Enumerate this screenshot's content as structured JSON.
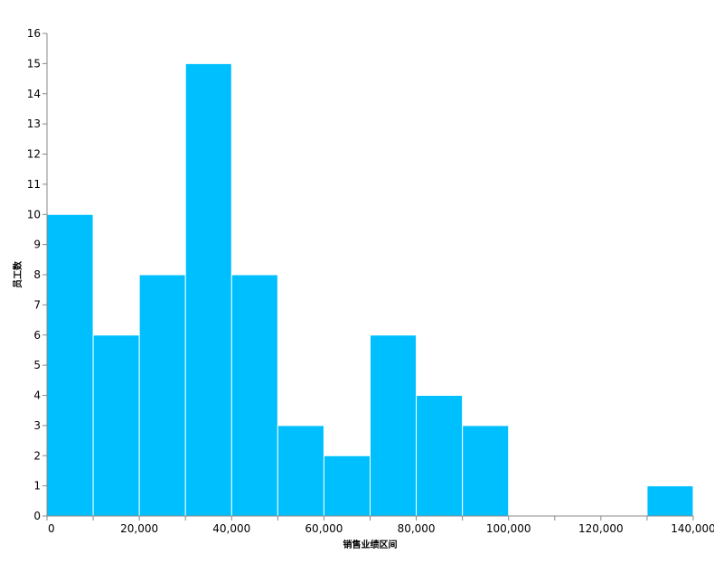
{
  "chart_data": {
    "type": "bar",
    "subtype": "histogram",
    "bins": [
      {
        "start": 0,
        "end": 10000,
        "count": 10
      },
      {
        "start": 10000,
        "end": 20000,
        "count": 6
      },
      {
        "start": 20000,
        "end": 30000,
        "count": 8
      },
      {
        "start": 30000,
        "end": 40000,
        "count": 15
      },
      {
        "start": 40000,
        "end": 50000,
        "count": 8
      },
      {
        "start": 50000,
        "end": 60000,
        "count": 3
      },
      {
        "start": 60000,
        "end": 70000,
        "count": 2
      },
      {
        "start": 70000,
        "end": 80000,
        "count": 6
      },
      {
        "start": 80000,
        "end": 90000,
        "count": 4
      },
      {
        "start": 90000,
        "end": 100000,
        "count": 3
      },
      {
        "start": 100000,
        "end": 110000,
        "count": 0
      },
      {
        "start": 110000,
        "end": 120000,
        "count": 0
      },
      {
        "start": 120000,
        "end": 130000,
        "count": 0
      },
      {
        "start": 130000,
        "end": 140000,
        "count": 1
      }
    ],
    "xlabel": "销售业绩区间",
    "ylabel": "员工数",
    "xlim": [
      0,
      140000
    ],
    "ylim": [
      0,
      16
    ],
    "x_ticks": [
      0,
      20000,
      40000,
      60000,
      80000,
      100000,
      120000,
      140000
    ],
    "x_tick_labels": [
      "0",
      "20,000",
      "40,000",
      "60,000",
      "80,000",
      "100,000",
      "120,000",
      "140,000"
    ],
    "x_minor_ticks": [
      10000,
      30000,
      50000,
      70000,
      90000,
      110000,
      130000
    ],
    "y_ticks": [
      0,
      1,
      2,
      3,
      4,
      5,
      6,
      7,
      8,
      9,
      10,
      11,
      12,
      13,
      14,
      15,
      16
    ],
    "y_tick_labels": [
      "0",
      "1",
      "2",
      "3",
      "4",
      "5",
      "6",
      "7",
      "8",
      "9",
      "10",
      "11",
      "12",
      "13",
      "14",
      "15",
      "16"
    ],
    "grid": false,
    "legend": "none",
    "bar_color": "#00bfff",
    "bar_edge_color": "#ffffff",
    "axis_color": "#888888"
  }
}
